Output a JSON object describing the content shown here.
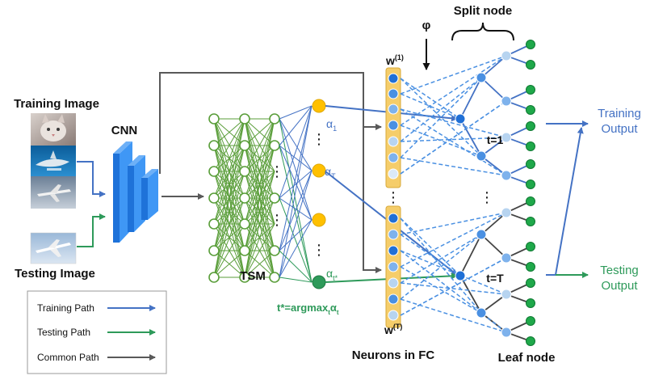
{
  "labels": {
    "training_image": "Training Image",
    "testing_image": "Testing Image",
    "cnn": "CNN",
    "tsm": "TSM",
    "phi": "φ",
    "split_node": "Split node",
    "w_top": "w",
    "w_top_sup": "(1)",
    "w_bottom": "w",
    "w_bottom_sup": "(T)",
    "neurons_fc": "Neurons in FC",
    "leaf_node": "Leaf node",
    "t_one": "t=1",
    "t_T": "t=T",
    "training_output_1": "Training",
    "training_output_2": "Output",
    "testing_output_1": "Testing",
    "testing_output_2": "Output",
    "alpha": "α",
    "alpha_1_sub": "1",
    "alpha_T_sub": "T",
    "alpha_tstar_sub": "t*",
    "tstar_formula_a": "t*=argmax",
    "tstar_formula_sub1": "t",
    "tstar_formula_b": "α",
    "tstar_formula_sub2": "t",
    "dots": "⋮"
  },
  "legend": [
    {
      "label": "Training Path",
      "color": "#4472c4"
    },
    {
      "label": "Testing Path",
      "color": "#2e9a5a"
    },
    {
      "label": "Common Path",
      "color": "#595959"
    }
  ],
  "colors": {
    "training": "#4472c4",
    "testing": "#2e9a5a",
    "common": "#595959",
    "tsm_green": "#5a9e3a",
    "node_orange": "#ffc000",
    "cnn_blue": "#2e86f0",
    "fc_yellow": "#f5cd6a",
    "leaf_green": "#1fa84a",
    "node_dark_blue": "#1f6fd6",
    "node_light_blue": "#b7d4f0"
  }
}
